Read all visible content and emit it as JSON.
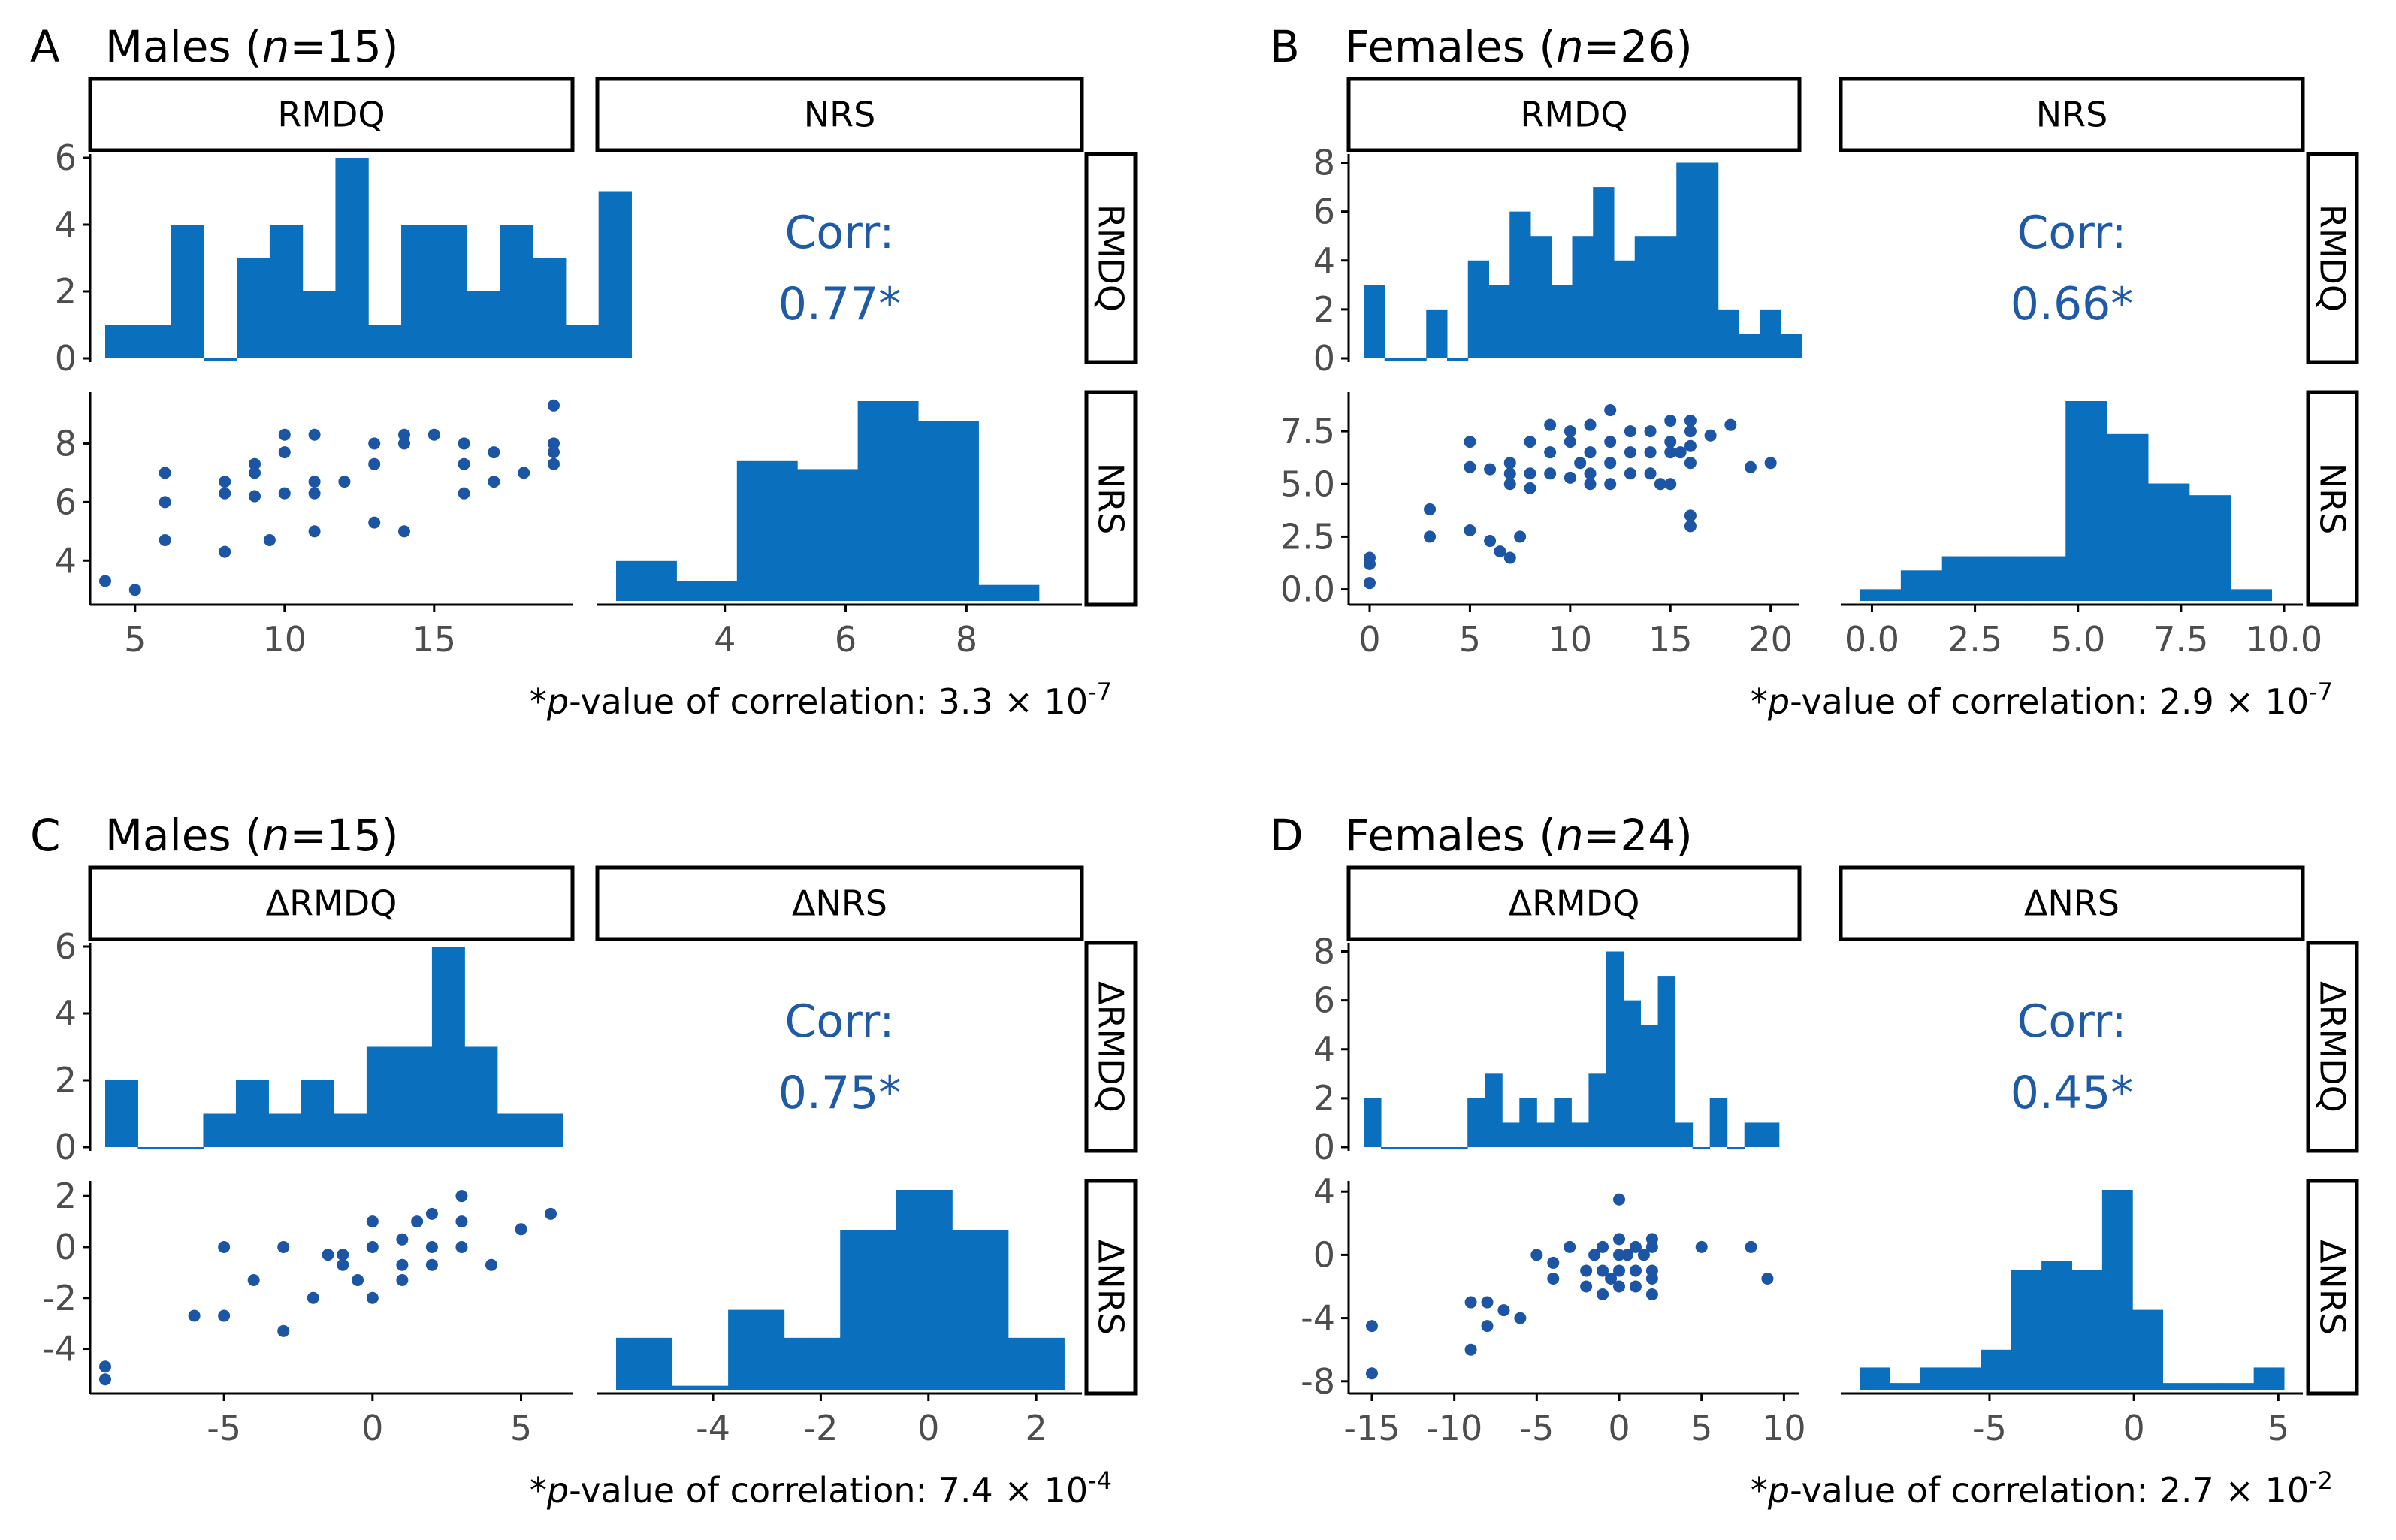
{
  "colors": {
    "bar": "#0a6fbd",
    "point": "#1c55a4",
    "corr_text": "#1f5aa6"
  },
  "chart_data": [
    {
      "type": "pairs",
      "panel": "A",
      "title_prefix": "Males (",
      "title_n": "n",
      "title_suffix": "=15)",
      "vars": [
        "RMDQ",
        "NRS"
      ],
      "x_ranges": [
        [
          4,
          19
        ],
        [
          2.2,
          9.6
        ]
      ],
      "x_ticks": [
        [
          5,
          10,
          15
        ],
        [
          4,
          6,
          8
        ]
      ],
      "hist_ylim": [
        0,
        6
      ],
      "hist_y_ticks": [
        0,
        2,
        4,
        6
      ],
      "scatter_ylim": [
        2.8,
        9.5
      ],
      "scatter_y_ticks": [
        4,
        6,
        8
      ],
      "hist1": {
        "bin_width": 1.1,
        "start": 4.0,
        "counts": [
          1,
          1,
          4,
          0,
          3,
          4,
          2,
          6,
          1,
          4,
          4,
          2,
          4,
          3,
          1,
          5
        ]
      },
      "hist2": {
        "bin_width": 1.0,
        "start": 2.2,
        "counts": [
          1,
          0.5,
          3.5,
          3.3,
          5,
          4.5,
          0.4
        ]
      },
      "scatter": {
        "x": [
          4,
          5,
          6,
          6,
          6,
          8,
          8,
          8,
          9,
          9,
          9,
          9.5,
          10,
          10,
          10,
          11,
          11,
          11,
          11,
          12,
          13,
          13,
          13,
          14,
          14,
          14,
          15,
          16,
          16,
          16,
          17,
          17,
          18,
          19,
          19,
          19,
          19
        ],
        "y": [
          3.3,
          3.0,
          7.0,
          6.0,
          4.7,
          6.7,
          6.3,
          4.3,
          7.3,
          7.0,
          6.2,
          4.7,
          8.3,
          7.7,
          6.3,
          8.3,
          6.7,
          6.3,
          5.0,
          6.7,
          8.0,
          7.3,
          5.3,
          8.3,
          8.0,
          5.0,
          8.3,
          8.0,
          7.3,
          6.3,
          7.7,
          6.7,
          7.0,
          9.3,
          8.0,
          7.7,
          7.3
        ]
      },
      "corr_label": "Corr:",
      "corr_value": "0.77*",
      "pval_prefix": "*",
      "pval_italic": "p",
      "pval_text": "-value of correlation: 3.3 × 10",
      "pval_exp": "-7"
    },
    {
      "type": "pairs",
      "panel": "B",
      "title_prefix": "Females (",
      "title_n": "n",
      "title_suffix": "=26)",
      "vars": [
        "RMDQ",
        "NRS"
      ],
      "x_ranges": [
        [
          -0.3,
          20.5
        ],
        [
          -0.3,
          10
        ]
      ],
      "x_ticks": [
        [
          0,
          5,
          10,
          15,
          20
        ],
        [
          0.0,
          2.5,
          5.0,
          7.5,
          10.0
        ]
      ],
      "x_tick_labels": [
        [
          "0",
          "5",
          "10",
          "15",
          "20"
        ],
        [
          "0.0",
          "2.5",
          "5.0",
          "7.5",
          "10.0"
        ]
      ],
      "hist_ylim": [
        0,
        8.2
      ],
      "hist_y_ticks": [
        0,
        2,
        4,
        6,
        8
      ],
      "scatter_ylim": [
        -0.3,
        9
      ],
      "scatter_y_ticks": [
        0.0,
        2.5,
        5.0,
        7.5
      ],
      "scatter_y_tick_labels": [
        "0.0",
        "2.5",
        "5.0",
        "7.5"
      ],
      "hist1": {
        "bin_width": 1.04,
        "start": -0.3,
        "counts": [
          3,
          0,
          0,
          2,
          0,
          4,
          3,
          6,
          5,
          3,
          5,
          7,
          4,
          5,
          5,
          8,
          8,
          2,
          1,
          2,
          1
        ]
      },
      "hist2": {
        "bin_width": 1.0,
        "start": -0.3,
        "counts": [
          0.5,
          1.3,
          1.9,
          1.9,
          1.9,
          8.5,
          7.1,
          5.0,
          4.5,
          0.5
        ]
      },
      "scatter": {
        "x": [
          0,
          0,
          0,
          3,
          3,
          5,
          5,
          5,
          6,
          6,
          6.5,
          7,
          7,
          7,
          7,
          7.5,
          8,
          8,
          8,
          9,
          9,
          9,
          10,
          10,
          10,
          10.5,
          11,
          11,
          11,
          11,
          12,
          12,
          12,
          12,
          13,
          13,
          13,
          14,
          14,
          14,
          14.5,
          15,
          15,
          15,
          15,
          15.5,
          16,
          16,
          16,
          16,
          16,
          16,
          17,
          18,
          19,
          20
        ],
        "y": [
          1.5,
          1.2,
          0.3,
          3.8,
          2.5,
          7.0,
          5.8,
          2.8,
          5.7,
          2.3,
          1.8,
          6.0,
          5.5,
          5.0,
          1.5,
          2.5,
          7.0,
          5.5,
          4.8,
          7.8,
          6.5,
          5.5,
          7.5,
          7.0,
          5.3,
          6.0,
          7.8,
          6.5,
          5.5,
          5.0,
          8.5,
          7.0,
          6.0,
          5.0,
          7.5,
          6.5,
          5.5,
          7.5,
          6.5,
          5.5,
          5.0,
          8.0,
          7.0,
          6.5,
          5.0,
          6.5,
          8.0,
          7.5,
          6.8,
          6.0,
          3.5,
          3.0,
          7.3,
          7.8,
          5.8,
          6.0
        ]
      },
      "corr_label": "Corr:",
      "corr_value": "0.66*",
      "pval_prefix": "*",
      "pval_italic": "p",
      "pval_text": "-value of correlation: 2.9 × 10",
      "pval_exp": "-7"
    },
    {
      "type": "pairs",
      "panel": "C",
      "title_prefix": "Males (",
      "title_n": "n",
      "title_suffix": "=15)",
      "vars": [
        "ΔRMDQ",
        "ΔNRS"
      ],
      "x_ranges": [
        [
          -9,
          6.1
        ],
        [
          -5.8,
          2.5
        ]
      ],
      "x_ticks": [
        [
          -5,
          0,
          5
        ],
        [
          -4,
          -2,
          0,
          2
        ]
      ],
      "hist_ylim": [
        0,
        6
      ],
      "hist_y_ticks": [
        0,
        2,
        4,
        6
      ],
      "scatter_ylim": [
        -5.4,
        2.3
      ],
      "scatter_y_ticks": [
        -4,
        -2,
        0,
        2
      ],
      "hist1": {
        "bin_width": 1.1,
        "start": -9.0,
        "counts": [
          2,
          0,
          0,
          1,
          2,
          1,
          2,
          1,
          3,
          3,
          6,
          3,
          1,
          1
        ]
      },
      "hist2": {
        "bin_width": 1.04,
        "start": -5.8,
        "counts": [
          1.3,
          0.1,
          2,
          1.3,
          4,
          5,
          4,
          1.3
        ]
      },
      "scatter": {
        "x": [
          -9,
          -9,
          -6,
          -5,
          -5,
          -4,
          -3,
          -3,
          -2,
          -1.5,
          -1,
          -1,
          -0.5,
          0,
          0,
          0,
          1,
          1,
          1,
          1.5,
          2,
          2,
          2,
          3,
          3,
          3,
          4,
          5,
          6
        ],
        "y": [
          -4.7,
          -5.2,
          -2.7,
          -2.7,
          0,
          -1.3,
          -3.3,
          0,
          -2.0,
          -0.3,
          -0.7,
          -0.3,
          -1.3,
          1.0,
          0,
          -2.0,
          0.3,
          -0.7,
          -1.3,
          1.0,
          1.3,
          0,
          -0.7,
          2.0,
          1.0,
          0,
          -0.7,
          0.7,
          1.3
        ]
      },
      "corr_label": "Corr:",
      "corr_value": "0.75*",
      "pval_prefix": "*",
      "pval_italic": "p",
      "pval_text": "-value of correlation: 7.4 × 10",
      "pval_exp": "-4"
    },
    {
      "type": "pairs",
      "panel": "D",
      "title_prefix": "Females (",
      "title_n": "n",
      "title_suffix": "=24)",
      "vars": [
        "ΔRMDQ",
        "ΔNRS"
      ],
      "x_ranges": [
        [
          -15.5,
          9.8
        ],
        [
          -9.5,
          5.2
        ]
      ],
      "x_ticks": [
        [
          -15,
          -10,
          -5,
          0,
          5,
          10
        ],
        [
          -5,
          0,
          5
        ]
      ],
      "hist_ylim": [
        0,
        8.2
      ],
      "hist_y_ticks": [
        0,
        2,
        4,
        6,
        8
      ],
      "scatter_ylim": [
        -8.2,
        4.2
      ],
      "scatter_y_ticks": [
        -8,
        -4,
        0,
        4
      ],
      "hist1": {
        "bin_width": 1.05,
        "start": -15.5,
        "counts": [
          2,
          0,
          0,
          0,
          0,
          0,
          2,
          3,
          1,
          2,
          1,
          2,
          1,
          3,
          8,
          6,
          5,
          7,
          1,
          0,
          2,
          0,
          1,
          1
        ]
      },
      "hist2": {
        "bin_width": 1.05,
        "start": -9.5,
        "counts": [
          1,
          0.3,
          1,
          1,
          1.8,
          5.4,
          5.8,
          5.4,
          9.0,
          3.6,
          0.3,
          0.3,
          0.3,
          1
        ]
      },
      "scatter": {
        "x": [
          -15,
          -15,
          -9,
          -9,
          -8,
          -8,
          -7,
          -6,
          -5,
          -4,
          -4,
          -3,
          -2,
          -2,
          -1.5,
          -1,
          -1,
          -1,
          -0.5,
          0,
          0,
          0,
          0,
          0,
          0.5,
          1,
          1,
          1,
          1.5,
          2,
          2,
          2,
          2,
          2,
          5,
          8,
          9
        ],
        "y": [
          -4.5,
          -7.5,
          -3.0,
          -6.0,
          -3.0,
          -4.5,
          -3.5,
          -4.0,
          0,
          -1.5,
          -0.5,
          0.5,
          -1.0,
          -2.0,
          0,
          0.5,
          -1.0,
          -2.5,
          -1.5,
          3.5,
          1.0,
          0,
          -1.0,
          -2.0,
          0,
          0.5,
          -1.0,
          -2.0,
          0,
          1.0,
          0.5,
          -1.0,
          -1.5,
          -2.5,
          0.5,
          0.5,
          -1.5
        ]
      },
      "corr_label": "Corr:",
      "corr_value": "0.45*",
      "pval_prefix": "*",
      "pval_italic": "p",
      "pval_text": "-value of correlation: 2.7 × 10",
      "pval_exp": "-2"
    }
  ]
}
